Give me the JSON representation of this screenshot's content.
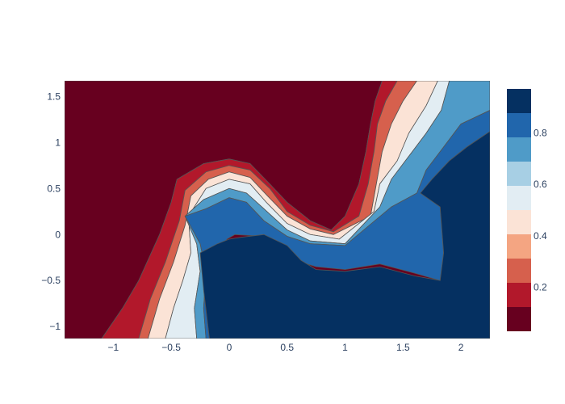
{
  "chart_data": {
    "type": "contour",
    "title": "",
    "xlabel": "",
    "ylabel": "",
    "x_range": [
      -1.42,
      2.25
    ],
    "y_range": [
      -1.13,
      1.67
    ],
    "x_ticks": [
      -1,
      -0.5,
      0,
      0.5,
      1,
      1.5,
      2
    ],
    "x_tick_labels": [
      "−1",
      "−0.5",
      "0",
      "0.5",
      "1",
      "1.5",
      "2"
    ],
    "y_ticks": [
      1.5,
      1,
      0.5,
      0,
      -0.5,
      -1
    ],
    "y_tick_labels": [
      "1.5",
      "1",
      "0.5",
      "0",
      "−0.5",
      "−1"
    ],
    "colorscale": "RdBu",
    "contour_levels": [
      0.05,
      0.15,
      0.25,
      0.35,
      0.45,
      0.55,
      0.65,
      0.75,
      0.85,
      0.95
    ],
    "level_colors": [
      "#67001f",
      "#b2182b",
      "#d6604d",
      "#f4a582",
      "#fddbc7",
      "#f7f7f7",
      "#d1e5f0",
      "#92c5de",
      "#4393c3",
      "#2166ac",
      "#053061"
    ],
    "colorbar": {
      "range": [
        0.03,
        0.97
      ],
      "ticks": [
        0.2,
        0.4,
        0.6,
        0.8
      ],
      "tick_labels": [
        "0.2",
        "0.4",
        "0.6",
        "0.8"
      ],
      "band_colors": [
        "#67001f",
        "#b2182b",
        "#d6604d",
        "#f4a582",
        "#fbe3d6",
        "#e2edf3",
        "#a7cfe4",
        "#4f9bc8",
        "#2166ac",
        "#053061"
      ]
    },
    "regions": [
      {
        "name": "region-p000",
        "color": "#67001f",
        "points": [
          [
            -1.42,
            1.67
          ],
          [
            1.32,
            1.67
          ],
          [
            1.26,
            1.45
          ],
          [
            1.22,
            1.2
          ],
          [
            1.18,
            0.9
          ],
          [
            1.12,
            0.55
          ],
          [
            1.0,
            0.2
          ],
          [
            0.88,
            0.05
          ],
          [
            0.7,
            0.15
          ],
          [
            0.5,
            0.35
          ],
          [
            0.35,
            0.55
          ],
          [
            0.18,
            0.77
          ],
          [
            0.0,
            0.82
          ],
          [
            -0.22,
            0.77
          ],
          [
            -0.45,
            0.6
          ],
          [
            -0.5,
            0.35
          ],
          [
            -0.6,
            0.0
          ],
          [
            -0.78,
            -0.5
          ],
          [
            -0.92,
            -0.8
          ],
          [
            -1.1,
            -1.13
          ],
          [
            -1.42,
            -1.13
          ]
        ]
      },
      {
        "name": "region-p010",
        "color": "#b2182b",
        "points": [
          [
            1.32,
            1.67
          ],
          [
            1.45,
            1.67
          ],
          [
            1.35,
            1.45
          ],
          [
            1.28,
            1.2
          ],
          [
            1.25,
            0.9
          ],
          [
            1.2,
            0.55
          ],
          [
            1.12,
            0.2
          ],
          [
            0.9,
            0.03
          ],
          [
            0.7,
            0.1
          ],
          [
            0.5,
            0.25
          ],
          [
            0.35,
            0.5
          ],
          [
            0.18,
            0.7
          ],
          [
            0.0,
            0.75
          ],
          [
            -0.2,
            0.68
          ],
          [
            -0.38,
            0.48
          ],
          [
            -0.43,
            0.15
          ],
          [
            -0.55,
            -0.3
          ],
          [
            -0.68,
            -0.7
          ],
          [
            -0.78,
            -1.13
          ],
          [
            -1.1,
            -1.13
          ],
          [
            -0.92,
            -0.8
          ],
          [
            -0.78,
            -0.5
          ],
          [
            -0.6,
            0.0
          ],
          [
            -0.5,
            0.35
          ],
          [
            -0.45,
            0.6
          ],
          [
            -0.22,
            0.77
          ],
          [
            0.0,
            0.82
          ],
          [
            0.18,
            0.77
          ],
          [
            0.35,
            0.55
          ],
          [
            0.5,
            0.35
          ],
          [
            0.7,
            0.15
          ],
          [
            0.88,
            0.05
          ],
          [
            1.0,
            0.2
          ],
          [
            1.12,
            0.55
          ],
          [
            1.18,
            0.9
          ],
          [
            1.22,
            1.2
          ],
          [
            1.26,
            1.45
          ]
        ]
      },
      {
        "name": "region-p020",
        "color": "#d6604d",
        "points": [
          [
            1.45,
            1.67
          ],
          [
            1.62,
            1.67
          ],
          [
            1.5,
            1.45
          ],
          [
            1.4,
            1.2
          ],
          [
            1.32,
            0.9
          ],
          [
            1.27,
            0.55
          ],
          [
            1.22,
            0.2
          ],
          [
            0.9,
            0.0
          ],
          [
            0.7,
            0.06
          ],
          [
            0.5,
            0.2
          ],
          [
            0.33,
            0.42
          ],
          [
            0.18,
            0.62
          ],
          [
            0.0,
            0.68
          ],
          [
            -0.18,
            0.6
          ],
          [
            -0.33,
            0.42
          ],
          [
            -0.38,
            0.1
          ],
          [
            -0.48,
            -0.3
          ],
          [
            -0.6,
            -0.7
          ],
          [
            -0.7,
            -1.13
          ],
          [
            -0.78,
            -1.13
          ],
          [
            -0.68,
            -0.7
          ],
          [
            -0.55,
            -0.3
          ],
          [
            -0.43,
            0.15
          ],
          [
            -0.38,
            0.48
          ],
          [
            -0.2,
            0.68
          ],
          [
            0.0,
            0.75
          ],
          [
            0.18,
            0.7
          ],
          [
            0.35,
            0.5
          ],
          [
            0.5,
            0.25
          ],
          [
            0.7,
            0.1
          ],
          [
            0.9,
            0.03
          ],
          [
            1.12,
            0.2
          ],
          [
            1.2,
            0.55
          ],
          [
            1.25,
            0.9
          ],
          [
            1.28,
            1.2
          ],
          [
            1.35,
            1.45
          ]
        ]
      },
      {
        "name": "region-p035",
        "color": "#fbe3d6",
        "points": [
          [
            1.62,
            1.67
          ],
          [
            1.8,
            1.67
          ],
          [
            1.7,
            1.4
          ],
          [
            1.55,
            1.1
          ],
          [
            1.45,
            0.8
          ],
          [
            1.3,
            0.55
          ],
          [
            1.25,
            0.25
          ],
          [
            0.95,
            -0.05
          ],
          [
            0.7,
            0.0
          ],
          [
            0.5,
            0.12
          ],
          [
            0.32,
            0.35
          ],
          [
            0.18,
            0.55
          ],
          [
            0.0,
            0.6
          ],
          [
            -0.2,
            0.5
          ],
          [
            -0.35,
            0.2
          ],
          [
            -0.33,
            -0.2
          ],
          [
            -0.4,
            -0.5
          ],
          [
            -0.48,
            -0.8
          ],
          [
            -0.55,
            -1.13
          ],
          [
            -0.7,
            -1.13
          ],
          [
            -0.6,
            -0.7
          ],
          [
            -0.48,
            -0.3
          ],
          [
            -0.38,
            0.1
          ],
          [
            -0.33,
            0.42
          ],
          [
            -0.18,
            0.6
          ],
          [
            0.0,
            0.68
          ],
          [
            0.18,
            0.62
          ],
          [
            0.33,
            0.42
          ],
          [
            0.5,
            0.2
          ],
          [
            0.7,
            0.06
          ],
          [
            0.9,
            0.0
          ],
          [
            1.22,
            0.2
          ],
          [
            1.27,
            0.55
          ],
          [
            1.32,
            0.9
          ],
          [
            1.4,
            1.2
          ],
          [
            1.5,
            1.45
          ]
        ]
      },
      {
        "name": "region-p055",
        "color": "#e2edf3",
        "points": [
          [
            1.8,
            1.67
          ],
          [
            1.9,
            1.67
          ],
          [
            1.83,
            1.35
          ],
          [
            1.7,
            1.1
          ],
          [
            1.55,
            0.85
          ],
          [
            1.4,
            0.6
          ],
          [
            1.3,
            0.3
          ],
          [
            1.0,
            -0.1
          ],
          [
            0.7,
            -0.07
          ],
          [
            0.5,
            0.05
          ],
          [
            0.3,
            0.28
          ],
          [
            0.15,
            0.45
          ],
          [
            0.0,
            0.5
          ],
          [
            -0.22,
            0.38
          ],
          [
            -0.38,
            0.2
          ],
          [
            -0.28,
            -0.1
          ],
          [
            -0.25,
            -0.4
          ],
          [
            -0.3,
            -0.8
          ],
          [
            -0.28,
            -1.13
          ],
          [
            -0.55,
            -1.13
          ],
          [
            -0.48,
            -0.8
          ],
          [
            -0.4,
            -0.5
          ],
          [
            -0.33,
            -0.2
          ],
          [
            -0.35,
            0.2
          ],
          [
            -0.2,
            0.5
          ],
          [
            0.0,
            0.6
          ],
          [
            0.18,
            0.55
          ],
          [
            0.32,
            0.35
          ],
          [
            0.5,
            0.12
          ],
          [
            0.7,
            0.0
          ],
          [
            0.95,
            -0.05
          ],
          [
            1.25,
            0.25
          ],
          [
            1.3,
            0.55
          ],
          [
            1.45,
            0.8
          ],
          [
            1.55,
            1.1
          ],
          [
            1.7,
            1.4
          ]
        ]
      },
      {
        "name": "region-p075",
        "color": "#4f9bc8",
        "points": [
          [
            1.9,
            1.67
          ],
          [
            2.25,
            1.67
          ],
          [
            2.25,
            1.35
          ],
          [
            2.0,
            1.2
          ],
          [
            1.85,
            0.95
          ],
          [
            1.7,
            0.7
          ],
          [
            1.62,
            0.45
          ],
          [
            1.4,
            0.3
          ],
          [
            1.0,
            -0.12
          ],
          [
            0.7,
            -0.1
          ],
          [
            0.5,
            -0.02
          ],
          [
            0.3,
            0.15
          ],
          [
            0.15,
            0.35
          ],
          [
            0.0,
            0.4
          ],
          [
            -0.2,
            0.28
          ],
          [
            -0.38,
            0.2
          ],
          [
            -0.25,
            -0.1
          ],
          [
            -0.2,
            -0.4
          ],
          [
            -0.22,
            -0.8
          ],
          [
            -0.2,
            -1.13
          ],
          [
            -0.28,
            -1.13
          ],
          [
            -0.3,
            -0.8
          ],
          [
            -0.25,
            -0.4
          ],
          [
            -0.28,
            -0.1
          ],
          [
            -0.38,
            0.2
          ],
          [
            -0.22,
            0.38
          ],
          [
            0.0,
            0.5
          ],
          [
            0.15,
            0.45
          ],
          [
            0.3,
            0.28
          ],
          [
            0.5,
            0.05
          ],
          [
            0.7,
            -0.07
          ],
          [
            1.0,
            -0.1
          ],
          [
            1.3,
            0.3
          ],
          [
            1.4,
            0.6
          ],
          [
            1.55,
            0.85
          ],
          [
            1.7,
            1.1
          ],
          [
            1.83,
            1.35
          ]
        ]
      },
      {
        "name": "region-p085",
        "color": "#2166ac",
        "points": [
          [
            2.25,
            1.35
          ],
          [
            2.25,
            1.12
          ],
          [
            2.05,
            0.95
          ],
          [
            1.9,
            0.8
          ],
          [
            1.75,
            0.6
          ],
          [
            1.82,
            0.3
          ],
          [
            1.85,
            -0.2
          ],
          [
            1.82,
            -0.5
          ],
          [
            1.6,
            -0.42
          ],
          [
            1.3,
            -0.32
          ],
          [
            1.0,
            -0.38
          ],
          [
            0.75,
            -0.35
          ],
          [
            0.62,
            -0.3
          ],
          [
            0.5,
            -0.15
          ],
          [
            0.3,
            -0.02
          ],
          [
            0.05,
            0.0
          ],
          [
            -0.02,
            -0.05
          ],
          [
            -0.05,
            -0.2
          ],
          [
            -0.2,
            -0.3
          ],
          [
            -0.22,
            -0.6
          ],
          [
            -0.17,
            -1.13
          ],
          [
            -0.2,
            -1.13
          ],
          [
            -0.22,
            -0.8
          ],
          [
            -0.2,
            -0.4
          ],
          [
            -0.25,
            -0.1
          ],
          [
            -0.38,
            0.2
          ],
          [
            -0.2,
            0.28
          ],
          [
            0.0,
            0.4
          ],
          [
            0.15,
            0.35
          ],
          [
            0.3,
            0.15
          ],
          [
            0.5,
            -0.02
          ],
          [
            0.7,
            -0.1
          ],
          [
            1.0,
            -0.12
          ],
          [
            1.4,
            0.3
          ],
          [
            1.62,
            0.45
          ],
          [
            1.7,
            0.7
          ],
          [
            1.85,
            0.95
          ],
          [
            2.0,
            1.2
          ]
        ]
      },
      {
        "name": "region-p095",
        "color": "#053061",
        "points": [
          [
            2.25,
            1.12
          ],
          [
            2.25,
            -1.13
          ],
          [
            -0.17,
            -1.13
          ],
          [
            -0.22,
            -0.6
          ],
          [
            -0.25,
            -0.2
          ],
          [
            -0.1,
            -0.1
          ],
          [
            0.0,
            -0.05
          ],
          [
            0.1,
            -0.03
          ],
          [
            0.3,
            0.0
          ],
          [
            0.5,
            -0.12
          ],
          [
            0.62,
            -0.28
          ],
          [
            0.75,
            -0.38
          ],
          [
            1.0,
            -0.4
          ],
          [
            1.3,
            -0.35
          ],
          [
            1.6,
            -0.45
          ],
          [
            1.82,
            -0.5
          ],
          [
            1.85,
            -0.2
          ],
          [
            1.82,
            0.3
          ],
          [
            1.65,
            0.45
          ],
          [
            1.75,
            0.6
          ],
          [
            1.9,
            0.8
          ],
          [
            2.05,
            0.95
          ]
        ]
      }
    ]
  }
}
